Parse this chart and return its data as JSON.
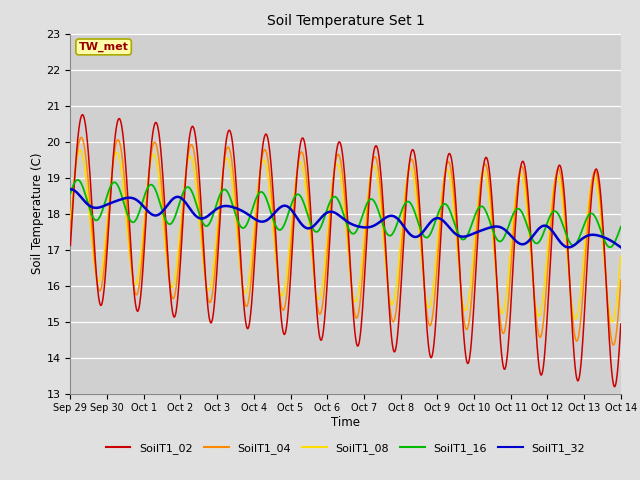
{
  "title": "Soil Temperature Set 1",
  "xlabel": "Time",
  "ylabel": "Soil Temperature (C)",
  "annotation": "TW_met",
  "ylim": [
    13.0,
    23.0
  ],
  "yticks": [
    13.0,
    14.0,
    15.0,
    16.0,
    17.0,
    18.0,
    19.0,
    20.0,
    21.0,
    22.0,
    23.0
  ],
  "colors": {
    "SoilT1_02": "#cc0000",
    "SoilT1_04": "#ff8800",
    "SoilT1_08": "#ffdd00",
    "SoilT1_16": "#00bb00",
    "SoilT1_32": "#0000cc"
  },
  "xtick_labels": [
    "Sep 29",
    "Sep 30",
    "Oct 1",
    "Oct 2",
    "Oct 3",
    "Oct 4",
    "Oct 5",
    "Oct 6",
    "Oct 7",
    "Oct 8",
    "Oct 9",
    "Oct 10",
    "Oct 11",
    "Oct 12",
    "Oct 13",
    "Oct 14"
  ],
  "xtick_positions": [
    0,
    1,
    2,
    3,
    4,
    5,
    6,
    7,
    8,
    9,
    10,
    11,
    12,
    13,
    14,
    15
  ]
}
